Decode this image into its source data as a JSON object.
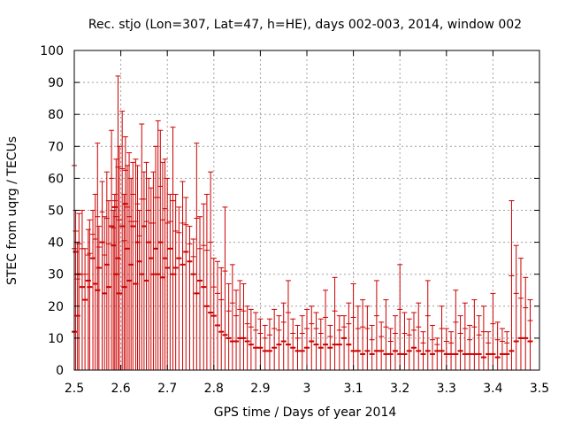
{
  "chart_data": {
    "type": "scatter",
    "title": "Rec. stjo (Lon=307, Lat=47, h=HE), days 002-003, 2014, window 002",
    "xlabel": "GPS time / Days of year 2014",
    "ylabel": "STEC from uqrg / TECUs",
    "xlim": [
      2.5,
      3.5
    ],
    "ylim": [
      0,
      100
    ],
    "xticks": [
      2.5,
      2.6,
      2.7,
      2.8,
      2.9,
      3.0,
      3.1,
      3.2,
      3.3,
      3.4,
      3.5
    ],
    "xtick_labels": [
      "2.5",
      "2.6",
      "2.7",
      "2.8",
      "2.9",
      "3",
      "3.1",
      "3.2",
      "3.3",
      "3.4",
      "3.5"
    ],
    "yticks": [
      0,
      10,
      20,
      30,
      40,
      50,
      60,
      70,
      80,
      90,
      100
    ],
    "ytick_labels": [
      "0",
      "10",
      "20",
      "30",
      "40",
      "50",
      "60",
      "70",
      "80",
      "90",
      "100"
    ],
    "grid": true,
    "series": [
      {
        "color": "#cc0000",
        "points": [
          [
            2.5,
            12,
            64
          ],
          [
            2.503,
            37,
            50
          ],
          [
            2.507,
            17,
            40
          ],
          [
            2.51,
            30,
            49
          ],
          [
            2.517,
            26,
            50
          ],
          [
            2.523,
            22,
            38
          ],
          [
            2.53,
            28,
            44
          ],
          [
            2.533,
            26,
            47
          ],
          [
            2.54,
            35,
            50
          ],
          [
            2.545,
            27,
            55
          ],
          [
            2.55,
            25,
            71
          ],
          [
            2.553,
            32,
            45
          ],
          [
            2.56,
            40,
            59
          ],
          [
            2.565,
            24,
            48
          ],
          [
            2.57,
            33,
            62
          ],
          [
            2.574,
            26,
            53
          ],
          [
            2.58,
            45,
            75
          ],
          [
            2.584,
            39,
            50
          ],
          [
            2.587,
            51,
            55
          ],
          [
            2.59,
            30,
            66
          ],
          [
            2.594,
            35,
            92
          ],
          [
            2.597,
            24,
            70
          ],
          [
            2.603,
            45,
            81
          ],
          [
            2.607,
            26,
            55
          ],
          [
            2.61,
            52,
            73
          ],
          [
            2.614,
            38,
            64
          ],
          [
            2.618,
            28,
            68
          ],
          [
            2.622,
            33,
            60
          ],
          [
            2.626,
            45,
            65
          ],
          [
            2.632,
            27,
            66
          ],
          [
            2.636,
            40,
            64
          ],
          [
            2.64,
            34,
            50
          ],
          [
            2.645,
            30,
            77
          ],
          [
            2.65,
            45,
            62
          ],
          [
            2.655,
            28,
            65
          ],
          [
            2.66,
            40,
            60
          ],
          [
            2.665,
            35,
            57
          ],
          [
            2.67,
            30,
            62
          ],
          [
            2.675,
            38,
            70
          ],
          [
            2.68,
            30,
            78
          ],
          [
            2.685,
            40,
            75
          ],
          [
            2.69,
            29,
            65
          ],
          [
            2.695,
            35,
            66
          ],
          [
            2.7,
            32,
            60
          ],
          [
            2.706,
            38,
            55
          ],
          [
            2.712,
            30,
            76
          ],
          [
            2.718,
            32,
            55
          ],
          [
            2.725,
            35,
            51
          ],
          [
            2.733,
            33,
            59
          ],
          [
            2.74,
            37,
            54
          ],
          [
            2.748,
            34,
            45
          ],
          [
            2.756,
            30,
            41
          ],
          [
            2.763,
            24,
            71
          ],
          [
            2.77,
            28,
            48
          ],
          [
            2.778,
            26,
            52
          ],
          [
            2.785,
            20,
            55
          ],
          [
            2.793,
            18,
            62
          ],
          [
            2.8,
            17,
            35
          ],
          [
            2.808,
            14,
            34
          ],
          [
            2.816,
            12,
            32
          ],
          [
            2.824,
            11,
            51
          ],
          [
            2.832,
            10,
            27
          ],
          [
            2.84,
            9,
            33
          ],
          [
            2.848,
            9,
            25
          ],
          [
            2.856,
            10,
            28
          ],
          [
            2.864,
            10,
            27
          ],
          [
            2.872,
            9,
            20
          ],
          [
            2.88,
            8,
            19
          ],
          [
            2.89,
            7,
            18
          ],
          [
            2.9,
            7,
            16
          ],
          [
            2.91,
            6,
            14
          ],
          [
            2.92,
            6,
            16
          ],
          [
            2.93,
            7,
            19
          ],
          [
            2.94,
            8,
            17
          ],
          [
            2.95,
            9,
            21
          ],
          [
            2.96,
            8,
            28
          ],
          [
            2.97,
            7,
            16
          ],
          [
            2.98,
            6,
            14
          ],
          [
            2.99,
            6,
            17
          ],
          [
            3.0,
            7,
            19
          ],
          [
            3.01,
            9,
            20
          ],
          [
            3.02,
            8,
            18
          ],
          [
            3.03,
            7,
            16
          ],
          [
            3.04,
            8,
            25
          ],
          [
            3.05,
            7,
            14
          ],
          [
            3.06,
            8,
            29
          ],
          [
            3.07,
            8,
            17
          ],
          [
            3.08,
            10,
            17
          ],
          [
            3.09,
            8,
            21
          ],
          [
            3.1,
            6,
            27
          ],
          [
            3.11,
            6,
            20
          ],
          [
            3.12,
            5,
            22
          ],
          [
            3.13,
            6,
            20
          ],
          [
            3.14,
            5,
            14
          ],
          [
            3.15,
            6,
            28
          ],
          [
            3.16,
            6,
            15
          ],
          [
            3.17,
            5,
            22
          ],
          [
            3.18,
            5,
            13
          ],
          [
            3.19,
            6,
            17
          ],
          [
            3.2,
            5,
            33
          ],
          [
            3.21,
            5,
            18
          ],
          [
            3.22,
            6,
            16
          ],
          [
            3.23,
            7,
            18
          ],
          [
            3.24,
            6,
            21
          ],
          [
            3.25,
            5,
            12
          ],
          [
            3.26,
            6,
            28
          ],
          [
            3.27,
            5,
            14
          ],
          [
            3.28,
            6,
            10
          ],
          [
            3.29,
            6,
            20
          ],
          [
            3.3,
            5,
            13
          ],
          [
            3.31,
            5,
            12
          ],
          [
            3.32,
            5,
            25
          ],
          [
            3.33,
            6,
            17
          ],
          [
            3.34,
            5,
            21
          ],
          [
            3.35,
            5,
            14
          ],
          [
            3.36,
            5,
            22
          ],
          [
            3.37,
            5,
            17
          ],
          [
            3.38,
            4,
            20
          ],
          [
            3.39,
            5,
            12
          ],
          [
            3.4,
            5,
            24
          ],
          [
            3.41,
            4,
            15
          ],
          [
            3.42,
            5,
            13
          ],
          [
            3.43,
            5,
            12
          ],
          [
            3.44,
            6,
            53
          ],
          [
            3.45,
            9,
            39
          ],
          [
            3.46,
            10,
            35
          ],
          [
            3.47,
            10,
            29
          ],
          [
            3.48,
            9,
            22
          ]
        ]
      }
    ]
  }
}
